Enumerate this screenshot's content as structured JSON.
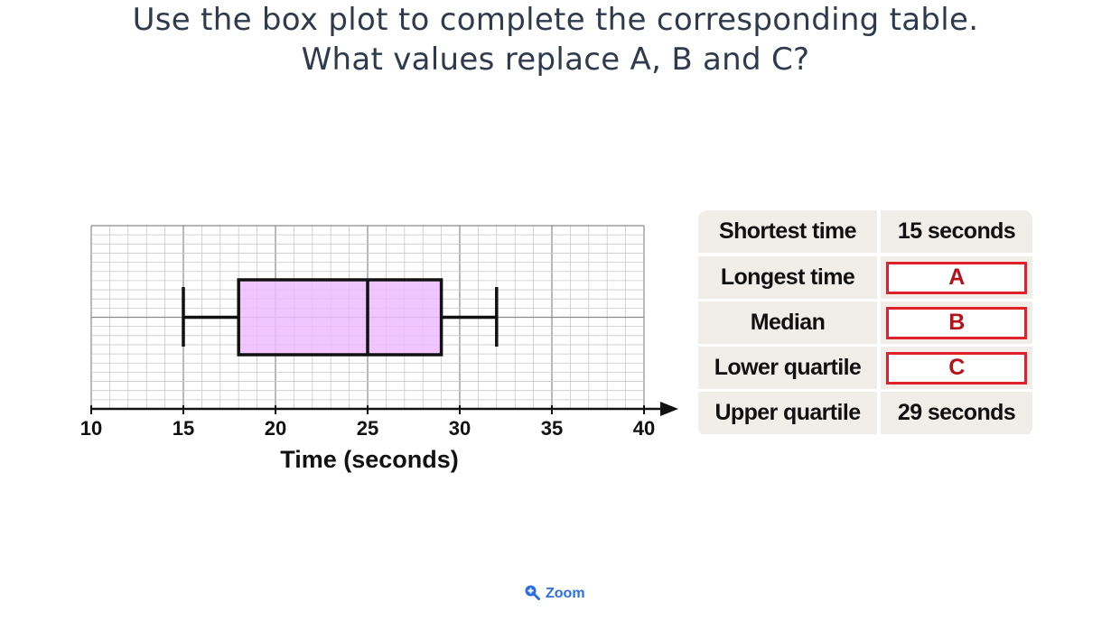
{
  "question": {
    "line1": "Use the box plot to complete the corresponding table.",
    "line2": "What values replace A, B and C?"
  },
  "chart_data": {
    "type": "box",
    "xlabel": "Time (seconds)",
    "xlim": [
      10,
      40
    ],
    "x_ticks": [
      "10",
      "15",
      "20",
      "25",
      "30",
      "35",
      "40"
    ],
    "minor_grid_step": 1,
    "major_grid_step": 5,
    "box": {
      "min": 15,
      "q1": 18,
      "median": 25,
      "q3": 29,
      "max": 32
    },
    "box_fill": "#efbbff",
    "grid": true
  },
  "table": {
    "rows": [
      {
        "label": "Shortest time",
        "value": "15 seconds",
        "is_answer": false
      },
      {
        "label": "Longest time",
        "value": "A",
        "is_answer": true
      },
      {
        "label": "Median",
        "value": "B",
        "is_answer": true
      },
      {
        "label": "Lower quartile",
        "value": "C",
        "is_answer": true
      },
      {
        "label": "Upper quartile",
        "value": "29 seconds",
        "is_answer": false
      }
    ]
  },
  "zoom": {
    "label": "Zoom",
    "icon": "zoom-in-icon"
  },
  "colors": {
    "text": "#2f3a4d",
    "answer_border": "#e0202a",
    "answer_text": "#b3141c",
    "link": "#2b6ee0"
  }
}
